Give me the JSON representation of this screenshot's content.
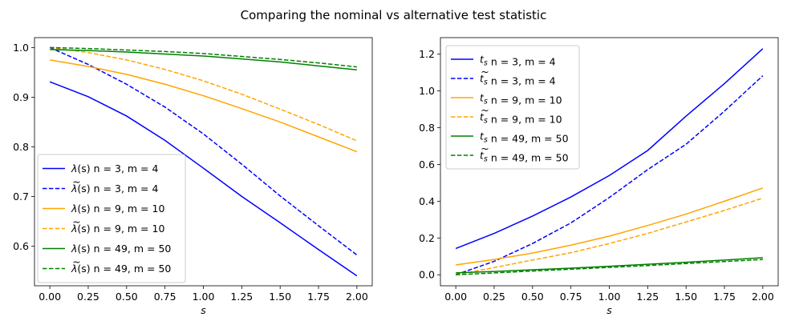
{
  "figure_title": "Comparing the nominal vs alternative test statistic",
  "chart_data": [
    {
      "type": "line",
      "xlabel": "s",
      "ylabel": "",
      "xlim": [
        -0.1,
        2.1
      ],
      "ylim": [
        0.52,
        1.02
      ],
      "xticks": [
        "0.00",
        "0.25",
        "0.50",
        "0.75",
        "1.00",
        "1.25",
        "1.50",
        "1.75",
        "2.00"
      ],
      "yticks": [
        "0.6",
        "0.7",
        "0.8",
        "0.9",
        "1.0"
      ],
      "legend_position": "lower-left",
      "x": [
        0,
        0.25,
        0.5,
        0.75,
        1.0,
        1.25,
        1.5,
        1.75,
        2.0
      ],
      "series": [
        {
          "name": "λ(s) n = 3, m = 4",
          "color": "#0000ff",
          "dashed": false,
          "values": [
            0.931,
            0.901,
            0.862,
            0.813,
            0.757,
            0.7,
            0.647,
            0.593,
            0.54
          ]
        },
        {
          "name": "λ̃(s) n = 3, m = 4",
          "color": "#0000ff",
          "dashed": true,
          "values": [
            1.0,
            0.966,
            0.926,
            0.88,
            0.826,
            0.765,
            0.701,
            0.641,
            0.582
          ]
        },
        {
          "name": "λ(s) n = 9, m = 10",
          "color": "#ffa500",
          "dashed": false,
          "values": [
            0.975,
            0.962,
            0.946,
            0.926,
            0.903,
            0.877,
            0.85,
            0.82,
            0.79
          ]
        },
        {
          "name": "λ̃(s) n = 9, m = 10",
          "color": "#ffa500",
          "dashed": true,
          "values": [
            1.0,
            0.99,
            0.975,
            0.956,
            0.933,
            0.906,
            0.876,
            0.845,
            0.812
          ]
        },
        {
          "name": "λ(s) n = 49, m = 50",
          "color": "#008000",
          "dashed": false,
          "values": [
            0.996,
            0.994,
            0.991,
            0.987,
            0.983,
            0.977,
            0.971,
            0.963,
            0.955
          ]
        },
        {
          "name": "λ̃(s) n = 49, m = 50",
          "color": "#008000",
          "dashed": true,
          "values": [
            1.0,
            0.998,
            0.995,
            0.992,
            0.988,
            0.982,
            0.976,
            0.969,
            0.961
          ]
        }
      ]
    },
    {
      "type": "line",
      "xlabel": "s",
      "ylabel": "",
      "xlim": [
        -0.1,
        2.1
      ],
      "ylim": [
        -0.06,
        1.29
      ],
      "xticks": [
        "0.00",
        "0.25",
        "0.50",
        "0.75",
        "1.00",
        "1.25",
        "1.50",
        "1.75",
        "2.00"
      ],
      "yticks": [
        "0.0",
        "0.2",
        "0.4",
        "0.6",
        "0.8",
        "1.0",
        "1.2"
      ],
      "legend_position": "upper-left",
      "x": [
        0,
        0.25,
        0.5,
        0.75,
        1.0,
        1.25,
        1.5,
        1.75,
        2.0
      ],
      "series": [
        {
          "name": "t_s n = 3, m = 4",
          "color": "#0000ff",
          "dashed": false,
          "values": [
            0.143,
            0.225,
            0.319,
            0.423,
            0.54,
            0.676,
            0.863,
            1.04,
            1.23
          ]
        },
        {
          "name": "t̃_s n = 3, m = 4",
          "color": "#0000ff",
          "dashed": true,
          "values": [
            0.0,
            0.073,
            0.17,
            0.282,
            0.42,
            0.572,
            0.71,
            0.89,
            1.083
          ]
        },
        {
          "name": "t_s n = 9, m = 10",
          "color": "#ffa500",
          "dashed": false,
          "values": [
            0.053,
            0.083,
            0.118,
            0.161,
            0.21,
            0.268,
            0.33,
            0.4,
            0.472
          ]
        },
        {
          "name": "t̃_s n = 9, m = 10",
          "color": "#ffa500",
          "dashed": true,
          "values": [
            0.0,
            0.039,
            0.08,
            0.12,
            0.17,
            0.225,
            0.287,
            0.35,
            0.417
          ]
        },
        {
          "name": "t_s n = 49, m = 50",
          "color": "#008000",
          "dashed": false,
          "values": [
            0.01,
            0.018,
            0.027,
            0.036,
            0.046,
            0.057,
            0.068,
            0.08,
            0.093
          ]
        },
        {
          "name": "t̃_s n = 49, m = 50",
          "color": "#008000",
          "dashed": true,
          "values": [
            0.0,
            0.01,
            0.02,
            0.03,
            0.04,
            0.05,
            0.061,
            0.072,
            0.083
          ]
        }
      ]
    }
  ]
}
